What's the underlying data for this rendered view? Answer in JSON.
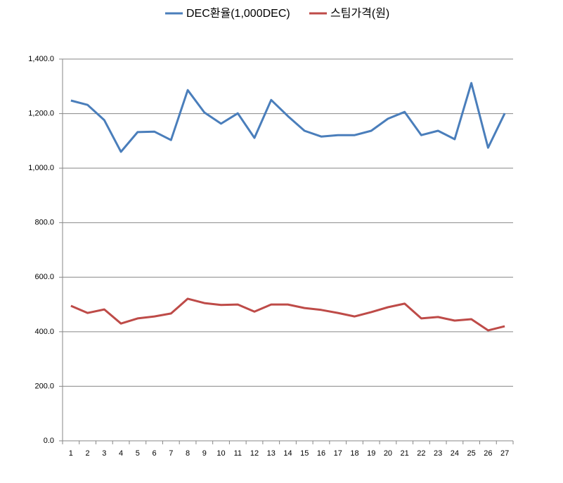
{
  "chart_data": {
    "type": "line",
    "categories": [
      "1",
      "2",
      "3",
      "4",
      "5",
      "6",
      "7",
      "8",
      "9",
      "10",
      "11",
      "12",
      "13",
      "14",
      "15",
      "16",
      "17",
      "18",
      "19",
      "20",
      "21",
      "22",
      "23",
      "24",
      "25",
      "26",
      "27"
    ],
    "series": [
      {
        "name": "DEC환율(1,000DEC)",
        "color": "#4a7ebb",
        "values": [
          1248,
          1232,
          1176,
          1060,
          1132,
          1134,
          1103,
          1286,
          1204,
          1163,
          1201,
          1111,
          1250,
          1191,
          1137,
          1116,
          1121,
          1121,
          1137,
          1181,
          1206,
          1121,
          1137,
          1106,
          1312,
          1075,
          1201
        ]
      },
      {
        "name": "스팀가격(원)",
        "color": "#be4b48",
        "values": [
          495,
          469,
          482,
          430,
          449,
          456,
          467,
          521,
          505,
          498,
          500,
          474,
          500,
          500,
          487,
          480,
          469,
          456,
          472,
          490,
          503,
          449,
          454,
          441,
          446,
          405,
          420
        ]
      }
    ],
    "ylim": [
      0,
      1400
    ],
    "yticks": [
      {
        "value": 0,
        "label": "0.0"
      },
      {
        "value": 200,
        "label": "200.0"
      },
      {
        "value": 400,
        "label": "400.0"
      },
      {
        "value": 600,
        "label": "600.0"
      },
      {
        "value": 800,
        "label": "800.0"
      },
      {
        "value": 1000,
        "label": "1,000.0"
      },
      {
        "value": 1200,
        "label": "1,200.0"
      },
      {
        "value": 1400,
        "label": "1,400.0"
      }
    ],
    "grid": true,
    "legend": "top"
  }
}
